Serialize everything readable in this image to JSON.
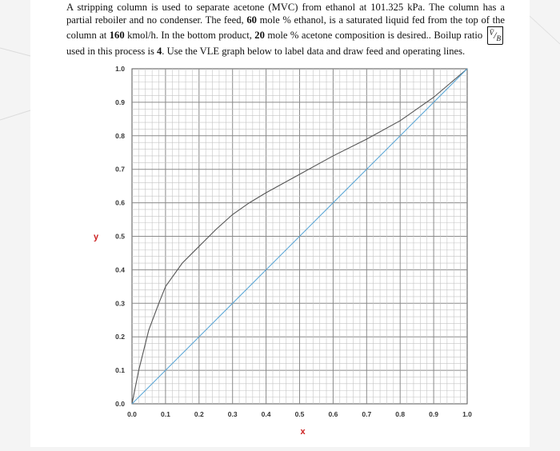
{
  "problem": {
    "text_1": "A stripping column is used to separate acetone (MVC) from ethanol at 101.325 kPa. The column has a partial reboiler and no condenser. The feed, ",
    "feed_pct": "60",
    "text_2": " mole % ethanol, is a saturated liquid fed from the top of the column at ",
    "feed_rate": "160",
    "text_3": " kmol/h. In the bottom product, ",
    "bottom_pct": "20",
    "text_4": " mole % acetone composition is desired.. Boilup ratio ",
    "ratio_num": "V̄",
    "ratio_den": "B",
    "text_5": " used in this process is ",
    "boilup": "4",
    "text_6": ". Use the VLE graph below to label data and draw feed and operating lines."
  },
  "chart_data": {
    "type": "line",
    "title": "",
    "xlabel": "x",
    "ylabel": "y",
    "xlim": [
      0,
      1
    ],
    "ylim": [
      0,
      1
    ],
    "x_ticks": [
      "0.0",
      "0.1",
      "0.2",
      "0.3",
      "0.4",
      "0.5",
      "0.6",
      "0.7",
      "0.8",
      "0.9",
      "1.0"
    ],
    "y_ticks": [
      "0.0",
      "0.1",
      "0.2",
      "0.3",
      "0.4",
      "0.5",
      "0.6",
      "0.7",
      "0.8",
      "0.9",
      "1.0"
    ],
    "grid": true,
    "series": [
      {
        "color": "#555555",
        "x": [
          0,
          0.02,
          0.05,
          0.08,
          0.1,
          0.15,
          0.2,
          0.25,
          0.3,
          0.35,
          0.4,
          0.5,
          0.6,
          0.7,
          0.8,
          0.9,
          1.0
        ],
        "y": [
          0,
          0.1,
          0.22,
          0.3,
          0.35,
          0.42,
          0.47,
          0.52,
          0.565,
          0.6,
          0.63,
          0.685,
          0.74,
          0.79,
          0.845,
          0.915,
          1.0
        ]
      },
      {
        "color": "#5aa6d6",
        "x": [
          0,
          1
        ],
        "y": [
          0,
          1
        ]
      }
    ]
  }
}
